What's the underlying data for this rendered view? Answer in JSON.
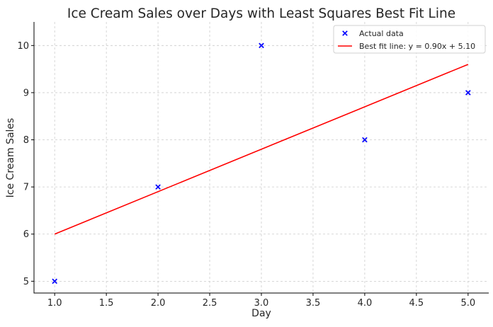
{
  "chart_data": {
    "type": "scatter",
    "title": "Ice Cream Sales over Days with Least Squares Best Fit Line",
    "xlabel": "Day",
    "ylabel": "Ice Cream Sales",
    "xlim": [
      0.8,
      5.2
    ],
    "ylim": [
      4.75,
      10.5
    ],
    "x_ticks": [
      1.0,
      1.5,
      2.0,
      2.5,
      3.0,
      3.5,
      4.0,
      4.5,
      5.0
    ],
    "x_tick_labels": [
      "1.0",
      "1.5",
      "2.0",
      "2.5",
      "3.0",
      "3.5",
      "4.0",
      "4.5",
      "5.0"
    ],
    "y_ticks": [
      5,
      6,
      7,
      8,
      9,
      10
    ],
    "y_tick_labels": [
      "5",
      "6",
      "7",
      "8",
      "9",
      "10"
    ],
    "grid": true,
    "legend_position": "top-right",
    "series": [
      {
        "name": "Actual data",
        "type": "scatter",
        "marker": "x",
        "color": "#0000ff",
        "x": [
          1,
          2,
          3,
          4,
          5
        ],
        "y": [
          5,
          7,
          10,
          8,
          9
        ]
      },
      {
        "name": "Best fit line: y = 0.90x + 5.10",
        "type": "line",
        "color": "#ff0000",
        "x": [
          1,
          5
        ],
        "y": [
          6.0,
          9.6
        ]
      }
    ]
  }
}
